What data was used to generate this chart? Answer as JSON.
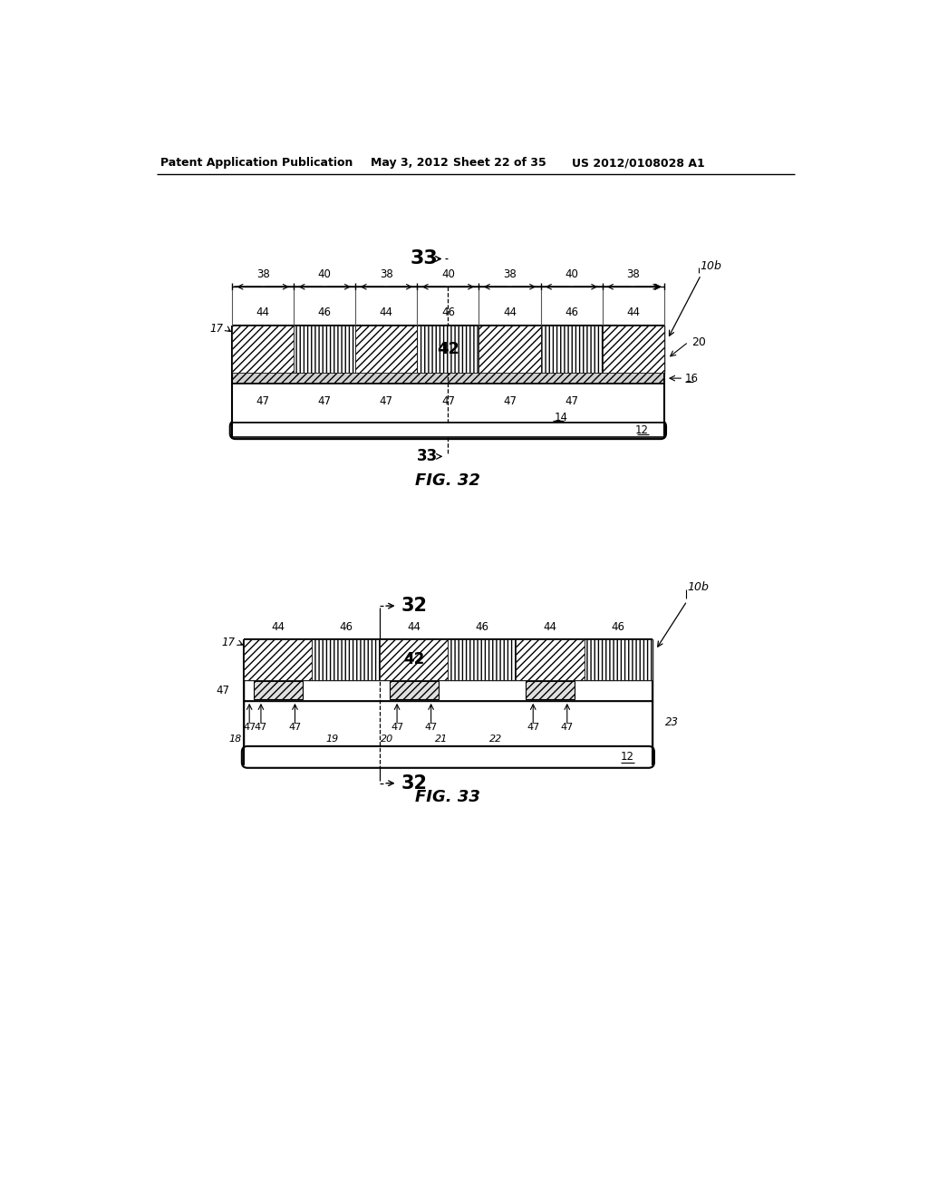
{
  "header_left": "Patent Application Publication",
  "header_mid_date": "May 3, 2012",
  "header_mid_sheet": "Sheet 22 of 35",
  "header_right": "US 2012/0108028 A1",
  "fig32_label": "FIG. 32",
  "fig33_label": "FIG. 33",
  "background": "#ffffff"
}
